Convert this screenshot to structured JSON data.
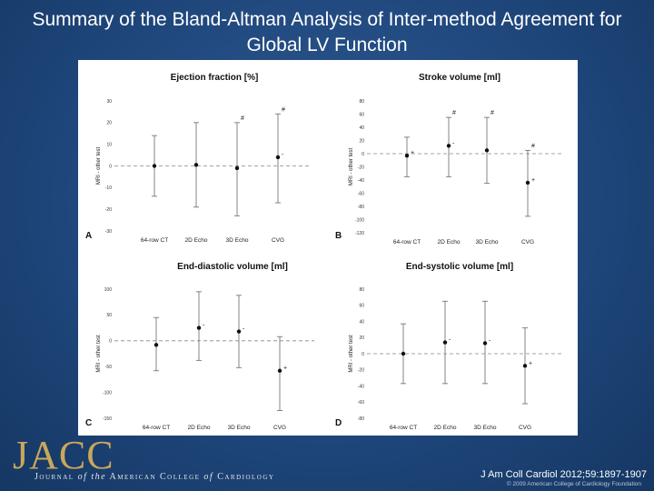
{
  "slide": {
    "title": "Summary of the Bland-Altman Analysis of Inter-method Agreement for Global LV Function",
    "citation": "J Am Coll Cardiol 2012;59:1897-1907",
    "copyright": "© 2009 American College of Cardiology Foundation",
    "logo": "JACC",
    "journal_name": {
      "part1": "Journal",
      "part2": "of the",
      "part3": "American College",
      "part4": "of",
      "part5": "Cardiology"
    },
    "background_color": "#1f477c",
    "logo_color": "#c9a85a"
  },
  "chart_data": [
    {
      "type": "scatter",
      "panel": "A",
      "title": "Ejection fraction [%]",
      "ylabel": "MRI - other test",
      "categories": [
        "64-row CT",
        "2D Echo",
        "3D Echo",
        "CVG"
      ],
      "ylim": [
        -30,
        30
      ],
      "yticks": [
        30,
        20,
        10,
        0,
        -10,
        -20,
        -30
      ],
      "series": [
        {
          "mean": [
            0,
            0.5,
            -1,
            4
          ],
          "upper": [
            14,
            20,
            20,
            24
          ],
          "lower": [
            -14,
            -19,
            -23,
            -17
          ]
        }
      ],
      "annotations": [
        {
          "index": 2,
          "text": "#"
        },
        {
          "index": 3,
          "text": "#"
        },
        {
          "index": 3,
          "text": "-",
          "at": "mean"
        }
      ]
    },
    {
      "type": "scatter",
      "panel": "B",
      "title": "Stroke volume [ml]",
      "ylabel": "MRI - other test",
      "categories": [
        "64-row CT",
        "2D Echo",
        "3D Echo",
        "CVG"
      ],
      "ylim": [
        -120,
        80
      ],
      "yticks": [
        80,
        60,
        40,
        20,
        0,
        -20,
        -40,
        -60,
        -80,
        -100,
        -120
      ],
      "series": [
        {
          "mean": [
            -3,
            12,
            5,
            -44
          ],
          "upper": [
            25,
            55,
            55,
            5
          ],
          "lower": [
            -35,
            -35,
            -45,
            -95
          ]
        }
      ],
      "annotations": [
        {
          "index": 0,
          "text": "+",
          "at": "mean"
        },
        {
          "index": 1,
          "text": "#"
        },
        {
          "index": 1,
          "text": "-",
          "at": "mean"
        },
        {
          "index": 2,
          "text": "#"
        },
        {
          "index": 3,
          "text": "#"
        },
        {
          "index": 3,
          "text": "+",
          "at": "mean"
        }
      ]
    },
    {
      "type": "scatter",
      "panel": "C",
      "title": "End-diastolic volume [ml]",
      "ylabel": "MRI - other test",
      "categories": [
        "64-row CT",
        "2D Echo",
        "3D Echo",
        "CVG"
      ],
      "ylim": [
        -150,
        100
      ],
      "yticks": [
        100,
        50,
        0,
        -50,
        -100,
        -150
      ],
      "series": [
        {
          "mean": [
            -8,
            25,
            18,
            -58
          ],
          "upper": [
            45,
            95,
            88,
            8
          ],
          "lower": [
            -58,
            -38,
            -52,
            -135
          ]
        }
      ],
      "annotations": [
        {
          "index": 1,
          "text": "-",
          "at": "mean"
        },
        {
          "index": 2,
          "text": "-",
          "at": "mean"
        },
        {
          "index": 3,
          "text": "+",
          "at": "mean"
        }
      ]
    },
    {
      "type": "scatter",
      "panel": "D",
      "title": "End-systolic volume [ml]",
      "ylabel": "MRI - other test",
      "categories": [
        "64-row CT",
        "2D Echo",
        "3D Echo",
        "CVG"
      ],
      "ylim": [
        -80,
        80
      ],
      "yticks": [
        80,
        60,
        40,
        20,
        0,
        -20,
        -40,
        -60,
        -80
      ],
      "series": [
        {
          "mean": [
            0,
            14,
            13,
            -15
          ],
          "upper": [
            37,
            65,
            65,
            32
          ],
          "lower": [
            -37,
            -37,
            -37,
            -62
          ]
        }
      ],
      "annotations": [
        {
          "index": 1,
          "text": "-",
          "at": "mean"
        },
        {
          "index": 2,
          "text": "-",
          "at": "mean"
        },
        {
          "index": 3,
          "text": "+",
          "at": "mean"
        }
      ]
    }
  ]
}
